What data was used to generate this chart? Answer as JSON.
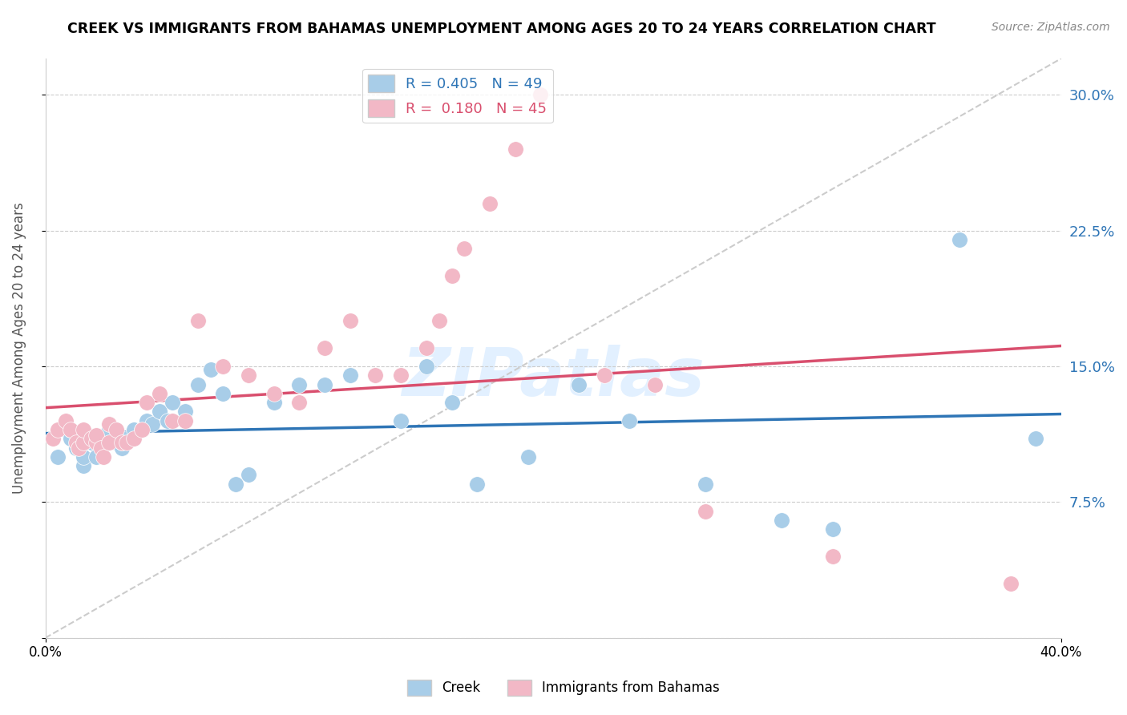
{
  "title": "CREEK VS IMMIGRANTS FROM BAHAMAS UNEMPLOYMENT AMONG AGES 20 TO 24 YEARS CORRELATION CHART",
  "source_text": "Source: ZipAtlas.com",
  "ylabel": "Unemployment Among Ages 20 to 24 years",
  "watermark": "ZIPatlas",
  "legend_blue_r": "0.405",
  "legend_blue_n": "49",
  "legend_pink_r": "0.180",
  "legend_pink_n": "45",
  "xmin": 0.0,
  "xmax": 0.4,
  "ymin": 0.0,
  "ymax": 0.32,
  "xtick_positions": [
    0.0,
    0.4
  ],
  "xtick_labels": [
    "0.0%",
    "40.0%"
  ],
  "yticks": [
    0.0,
    0.075,
    0.15,
    0.225,
    0.3
  ],
  "ytick_labels_right": [
    "",
    "7.5%",
    "15.0%",
    "22.5%",
    "30.0%"
  ],
  "blue_color": "#A8CDE8",
  "pink_color": "#F2B8C6",
  "blue_line_color": "#2E75B6",
  "pink_line_color": "#D94F6E",
  "dashed_line_color": "#CCCCCC",
  "creek_x": [
    0.005,
    0.008,
    0.01,
    0.01,
    0.012,
    0.013,
    0.015,
    0.015,
    0.015,
    0.018,
    0.02,
    0.02,
    0.022,
    0.023,
    0.025,
    0.025,
    0.028,
    0.03,
    0.03,
    0.032,
    0.035,
    0.038,
    0.04,
    0.042,
    0.045,
    0.048,
    0.05,
    0.055,
    0.06,
    0.065,
    0.07,
    0.075,
    0.08,
    0.09,
    0.1,
    0.11,
    0.12,
    0.14,
    0.15,
    0.16,
    0.17,
    0.19,
    0.21,
    0.23,
    0.26,
    0.29,
    0.31,
    0.36,
    0.39
  ],
  "creek_y": [
    0.1,
    0.115,
    0.11,
    0.115,
    0.105,
    0.105,
    0.095,
    0.1,
    0.108,
    0.108,
    0.1,
    0.108,
    0.11,
    0.108,
    0.112,
    0.115,
    0.108,
    0.105,
    0.108,
    0.11,
    0.115,
    0.115,
    0.12,
    0.118,
    0.125,
    0.12,
    0.13,
    0.125,
    0.14,
    0.148,
    0.135,
    0.085,
    0.09,
    0.13,
    0.14,
    0.14,
    0.145,
    0.12,
    0.15,
    0.13,
    0.085,
    0.1,
    0.14,
    0.12,
    0.085,
    0.065,
    0.06,
    0.22,
    0.11
  ],
  "bahamas_x": [
    0.003,
    0.005,
    0.008,
    0.01,
    0.012,
    0.013,
    0.015,
    0.015,
    0.018,
    0.02,
    0.02,
    0.022,
    0.023,
    0.025,
    0.025,
    0.028,
    0.03,
    0.032,
    0.035,
    0.038,
    0.04,
    0.045,
    0.05,
    0.055,
    0.06,
    0.07,
    0.08,
    0.09,
    0.1,
    0.11,
    0.12,
    0.13,
    0.14,
    0.15,
    0.155,
    0.16,
    0.165,
    0.175,
    0.185,
    0.195,
    0.22,
    0.24,
    0.26,
    0.31,
    0.38
  ],
  "bahamas_y": [
    0.11,
    0.115,
    0.12,
    0.115,
    0.108,
    0.105,
    0.108,
    0.115,
    0.11,
    0.108,
    0.112,
    0.105,
    0.1,
    0.108,
    0.118,
    0.115,
    0.108,
    0.108,
    0.11,
    0.115,
    0.13,
    0.135,
    0.12,
    0.12,
    0.175,
    0.15,
    0.145,
    0.135,
    0.13,
    0.16,
    0.175,
    0.145,
    0.145,
    0.16,
    0.175,
    0.2,
    0.215,
    0.24,
    0.27,
    0.3,
    0.145,
    0.14,
    0.07,
    0.045,
    0.03
  ]
}
